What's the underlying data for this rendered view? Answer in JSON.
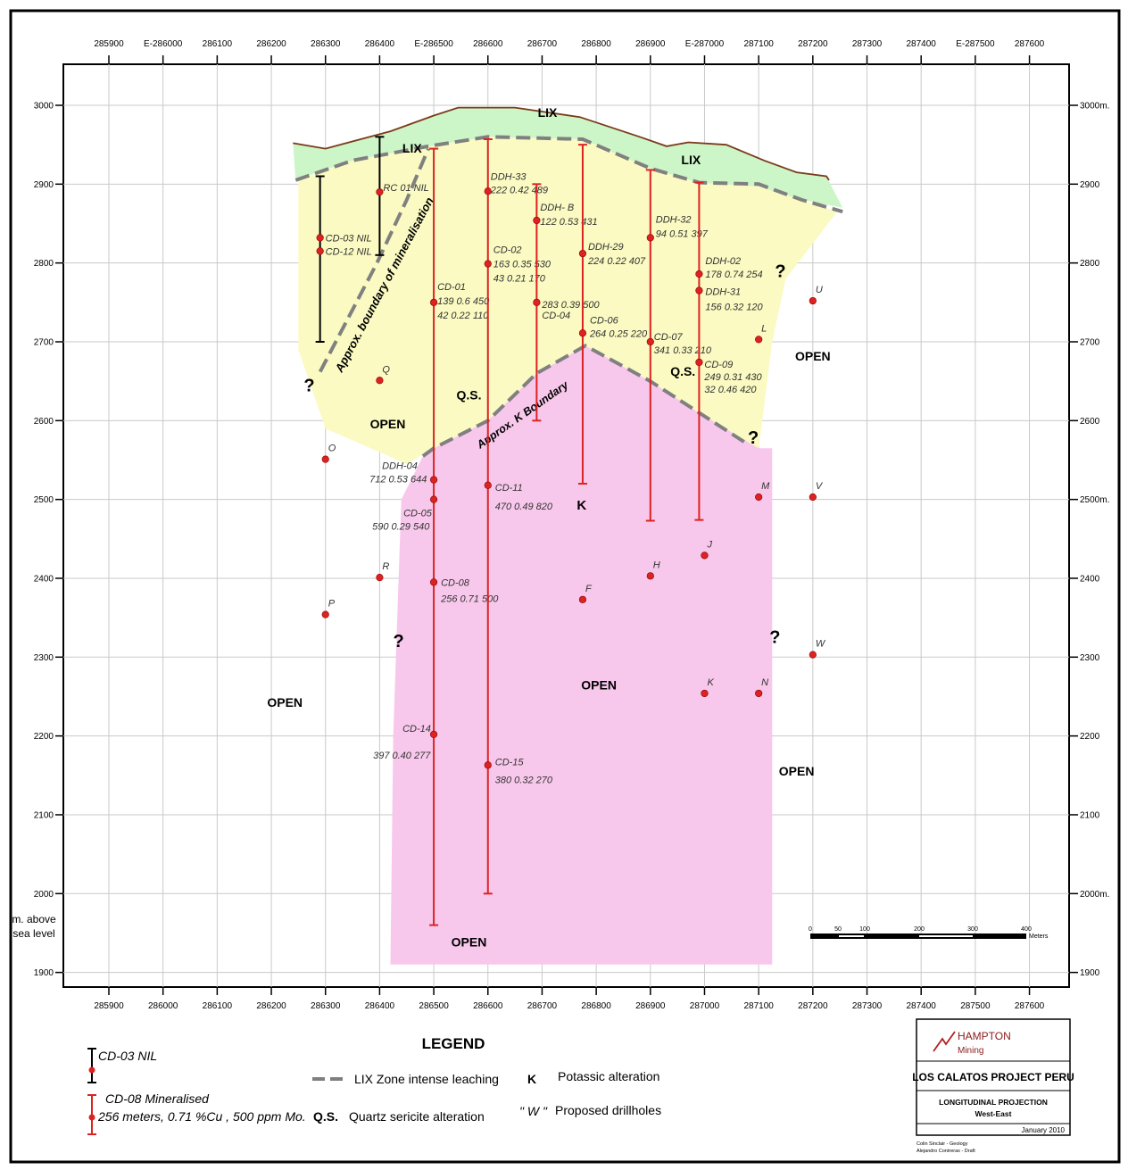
{
  "frame": {
    "top_axis_labels": [
      "285900",
      "E-286000",
      "286100",
      "286200",
      "286300",
      "286400",
      "E-286500",
      "286600",
      "286700",
      "286800",
      "286900",
      "E-287000",
      "287100",
      "287200",
      "287300",
      "287400",
      "E-287500",
      "287600"
    ],
    "bottom_axis_labels": [
      "285900",
      "286000",
      "286100",
      "286200",
      "286300",
      "286400",
      "286500",
      "286600",
      "286700",
      "286800",
      "286900",
      "287000",
      "287100",
      "287200",
      "287300",
      "287400",
      "287500",
      "287600"
    ],
    "left_axis_labels": [
      "3000",
      "2900",
      "2800",
      "2700",
      "2600",
      "2500",
      "2400",
      "2300",
      "2200",
      "2100",
      "2000",
      "1900"
    ],
    "right_axis_labels": [
      "3000m.",
      "2900",
      "2800",
      "2700",
      "2600",
      "2500m.",
      "2400",
      "2300",
      "2200",
      "2100",
      "2000m.",
      "1900"
    ],
    "axis_units_line1": "m. above",
    "axis_units_line2": "sea level"
  },
  "map_data": {
    "easting_range": [
      285900,
      287600
    ],
    "elevation_range": [
      1900,
      3000
    ],
    "colors": {
      "lix": "#ccf5c8",
      "qs": "#fafac2",
      "k": "#f8c8ec",
      "hole": "#dd2222",
      "ground": "#7a3a1a",
      "grid": "#c9c9c9"
    },
    "zone_labels": [
      {
        "id": "lix-1",
        "text": "LIX",
        "e": 286460,
        "z": 2940
      },
      {
        "id": "lix-2",
        "text": "LIX",
        "e": 286710,
        "z": 2985
      },
      {
        "id": "lix-3",
        "text": "LIX",
        "e": 286975,
        "z": 2925
      },
      {
        "id": "qs-1",
        "text": "Q.S.",
        "e": 286565,
        "z": 2627
      },
      {
        "id": "qs-2",
        "text": "Q.S.",
        "e": 286960,
        "z": 2657
      },
      {
        "id": "k-1",
        "text": "K",
        "e": 286773,
        "z": 2487
      },
      {
        "id": "open-1",
        "text": "OPEN",
        "e": 286415,
        "z": 2590
      },
      {
        "id": "open-2",
        "text": "OPEN",
        "e": 287200,
        "z": 2676
      },
      {
        "id": "open-3",
        "text": "OPEN",
        "e": 286225,
        "z": 2237
      },
      {
        "id": "open-4",
        "text": "OPEN",
        "e": 286805,
        "z": 2259
      },
      {
        "id": "open-5",
        "text": "OPEN",
        "e": 287170,
        "z": 2150
      },
      {
        "id": "open-6",
        "text": "OPEN",
        "e": 286565,
        "z": 1933
      },
      {
        "id": "q-1",
        "text": "?",
        "e": 286270,
        "z": 2637
      },
      {
        "id": "q-2",
        "text": "?",
        "e": 287140,
        "z": 2782
      },
      {
        "id": "q-3",
        "text": "?",
        "e": 287090,
        "z": 2571
      },
      {
        "id": "q-4",
        "text": "?",
        "e": 286435,
        "z": 2313
      },
      {
        "id": "q-5",
        "text": "?",
        "e": 287130,
        "z": 2318
      }
    ],
    "boundaries": [
      {
        "id": "approx-mineralisation",
        "text": "Approx. boundary of mineralisation"
      },
      {
        "id": "approx-k",
        "text": "Approx. K Boundary"
      }
    ],
    "drillholes": [
      {
        "id": "cd-03",
        "labels": [
          "CD-03 NIL"
        ],
        "e": 286290,
        "top": 2910,
        "bottom": 2700,
        "dot": 2832,
        "kind": "nil"
      },
      {
        "id": "cd-12",
        "labels": [
          "CD-12 NIL"
        ],
        "e": 286290,
        "dot": 2815,
        "kind": "nil"
      },
      {
        "id": "rc-01",
        "labels": [
          "RC 01 NIL"
        ],
        "e": 286400,
        "top": 2960,
        "bottom": 2810,
        "dot": 2890,
        "kind": "nil"
      },
      {
        "id": "cd-01",
        "labels": [
          "CD-01",
          "139 0.6 450",
          "42 0.22 110"
        ],
        "e": 286500,
        "top": 2945,
        "bottom": 1960,
        "dot": 2750,
        "kind": "min"
      },
      {
        "id": "ddh-04",
        "labels": [
          "DDH-04",
          "712 0.53 644"
        ],
        "e": 286500,
        "dot": 2525,
        "kind": "min"
      },
      {
        "id": "cd-05",
        "labels": [
          "CD-05",
          "590 0.29 540"
        ],
        "e": 286500,
        "dot": 2500,
        "kind": "min"
      },
      {
        "id": "cd-08",
        "labels": [
          "CD-08",
          "256 0.71 500"
        ],
        "e": 286500,
        "dot": 2395,
        "kind": "min"
      },
      {
        "id": "cd-14",
        "labels": [
          "CD-14",
          "397 0.40 277"
        ],
        "e": 286500,
        "dot": 2202,
        "kind": "min"
      },
      {
        "id": "ddh-33",
        "labels": [
          "DDH-33",
          "222 0.42 489"
        ],
        "e": 286600,
        "top": 2957,
        "bottom": 2000,
        "dot": 2891,
        "kind": "min"
      },
      {
        "id": "cd-02",
        "labels": [
          "CD-02",
          "163 0.35 530",
          "43 0.21 170"
        ],
        "e": 286600,
        "dot": 2799,
        "kind": "min"
      },
      {
        "id": "cd-11",
        "labels": [
          "CD-11",
          "470 0.49 820"
        ],
        "e": 286600,
        "dot": 2518,
        "kind": "min"
      },
      {
        "id": "cd-15",
        "labels": [
          "CD-15",
          "380 0.32 270"
        ],
        "e": 286600,
        "dot": 2163,
        "kind": "min"
      },
      {
        "id": "ddh-b",
        "labels": [
          "DDH- B",
          "122 0.53 431"
        ],
        "e": 286690,
        "top": 2900,
        "bottom": 2600,
        "dot": 2854,
        "kind": "min"
      },
      {
        "id": "cd-04",
        "labels": [
          "283 0.39 500",
          "CD-04"
        ],
        "e": 286690,
        "dot": 2750,
        "kind": "min"
      },
      {
        "id": "ddh-29",
        "labels": [
          "DDH-29",
          "224 0.22 407"
        ],
        "e": 286775,
        "top": 2950,
        "bottom": 2520,
        "dot": 2812,
        "kind": "min"
      },
      {
        "id": "cd-06",
        "labels": [
          "CD-06",
          "264 0.25 220"
        ],
        "e": 286775,
        "dot": 2711,
        "kind": "min"
      },
      {
        "id": "ddh-32",
        "labels": [
          "DDH-32",
          "94 0.51 397"
        ],
        "e": 286900,
        "top": 2918,
        "bottom": 2473,
        "dot": 2832,
        "kind": "min"
      },
      {
        "id": "cd-07",
        "labels": [
          "CD-07",
          "341 0.33 210"
        ],
        "e": 286900,
        "dot": 2700,
        "kind": "min"
      },
      {
        "id": "ddh-02",
        "labels": [
          "DDH-02",
          "178 0.74 254"
        ],
        "e": 286990,
        "top": 2902,
        "bottom": 2474,
        "dot": 2786,
        "kind": "min"
      },
      {
        "id": "ddh-31",
        "labels": [
          "DDH-31",
          "156 0.32 120"
        ],
        "e": 286990,
        "dot": 2765,
        "kind": "min"
      },
      {
        "id": "cd-09",
        "labels": [
          "CD-09",
          "249 0.31 430",
          "32 0.46 420"
        ],
        "e": 286990,
        "dot": 2674,
        "kind": "min"
      }
    ],
    "proposed": [
      {
        "id": "u",
        "label": "U",
        "e": 287200,
        "z": 2752
      },
      {
        "id": "l",
        "label": "L",
        "e": 287100,
        "z": 2703
      },
      {
        "id": "q",
        "label": "Q",
        "e": 286400,
        "z": 2651
      },
      {
        "id": "o",
        "label": "O",
        "e": 286300,
        "z": 2551
      },
      {
        "id": "m",
        "label": "M",
        "e": 287100,
        "z": 2503
      },
      {
        "id": "v",
        "label": "V",
        "e": 287200,
        "z": 2503
      },
      {
        "id": "j",
        "label": "J",
        "e": 287000,
        "z": 2429
      },
      {
        "id": "r",
        "label": "R",
        "e": 286400,
        "z": 2401
      },
      {
        "id": "h",
        "label": "H",
        "e": 286900,
        "z": 2403
      },
      {
        "id": "f",
        "label": "F",
        "e": 286775,
        "z": 2373
      },
      {
        "id": "p",
        "label": "P",
        "e": 286300,
        "z": 2354
      },
      {
        "id": "w",
        "label": "W",
        "e": 287200,
        "z": 2303
      },
      {
        "id": "k",
        "label": "K",
        "e": 287000,
        "z": 2254
      },
      {
        "id": "n",
        "label": "N",
        "e": 287100,
        "z": 2254
      }
    ]
  },
  "scale_bar": {
    "ticks": [
      "0",
      "50",
      "100",
      "200",
      "300",
      "400"
    ],
    "unit": "Meters"
  },
  "legend": {
    "title": "LEGEND",
    "nil_example": "CD-03  NIL",
    "min_example_line1": "CD-08 Mineralised",
    "min_example_line2": "256 meters, 0.71 %Cu , 500 ppm Mo.",
    "lix_text": "LIX  Zone intense leaching",
    "qs_key": "Q.S.",
    "qs_text": "Quartz sericite alteration",
    "k_key": "K",
    "k_text": "Potassic alteration",
    "w_key": "\" W \"",
    "w_text": "Proposed drillholes"
  },
  "title_block": {
    "company_line1": "HAMPTON",
    "company_line2": "Mining",
    "project": "LOS CALATOS PROJECT PERU",
    "subtitle_line1": "LONGITUDINAL PROJECTION",
    "subtitle_line2": "West-East",
    "date": "January 2010",
    "credit1": "Colin Sinclair - Geology",
    "credit2": "Alejandro Contreras - Draft"
  }
}
